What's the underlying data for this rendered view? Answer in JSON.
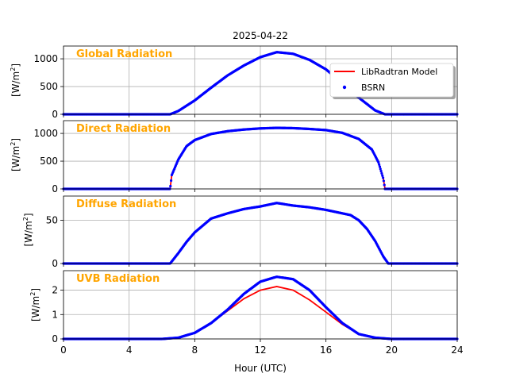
{
  "title": "2025-04-22",
  "xlabel": "Hour (UTC)",
  "x_ticks": [
    "0",
    "4",
    "8",
    "12",
    "16",
    "20",
    "24"
  ],
  "xlim": [
    0,
    24
  ],
  "legend": {
    "location": "top-right of first panel",
    "entries": [
      {
        "name": "LibRadtran Model",
        "color": "#ff0000",
        "marker": "line"
      },
      {
        "name": "BSRN",
        "color": "#0000ff",
        "marker": "point"
      }
    ]
  },
  "colors": {
    "model": "#ff0000",
    "bsrn": "#0000ff",
    "panel_label": "#ffa500",
    "grid": "#b0b0b0"
  },
  "chart_data": [
    {
      "type": "line",
      "panel_label": "Global Radiation",
      "ylabel": "[W/m2]",
      "ylim": [
        0,
        1230
      ],
      "yticks": [
        0,
        500,
        1000
      ],
      "grid": true,
      "x": [
        0,
        6.5,
        7,
        8,
        9,
        10,
        11,
        12,
        13,
        14,
        15,
        16,
        17,
        18,
        19,
        19.6,
        24
      ],
      "series": [
        {
          "name": "LibRadtran Model",
          "values": [
            0,
            0,
            60,
            250,
            480,
            700,
            880,
            1030,
            1120,
            1090,
            980,
            810,
            560,
            300,
            70,
            0,
            0
          ]
        },
        {
          "name": "BSRN",
          "values": [
            0,
            0,
            60,
            250,
            480,
            700,
            880,
            1030,
            1120,
            1090,
            980,
            810,
            560,
            300,
            70,
            0,
            0
          ]
        }
      ]
    },
    {
      "type": "line",
      "panel_label": "Direct Radiation",
      "ylabel": "[W/m2]",
      "ylim": [
        0,
        1230
      ],
      "yticks": [
        0,
        500,
        1000
      ],
      "grid": true,
      "x": [
        0,
        6.5,
        6.6,
        7,
        7.5,
        8,
        9,
        10,
        11,
        12,
        13,
        14,
        15,
        16,
        17,
        18,
        18.8,
        19.2,
        19.5,
        19.6,
        24
      ],
      "series": [
        {
          "name": "LibRadtran Model",
          "values": [
            0,
            0,
            250,
            530,
            770,
            880,
            990,
            1040,
            1070,
            1090,
            1100,
            1095,
            1080,
            1060,
            1010,
            900,
            710,
            480,
            180,
            0,
            0
          ]
        },
        {
          "name": "BSRN",
          "values": [
            0,
            0,
            250,
            530,
            770,
            880,
            990,
            1040,
            1070,
            1090,
            1100,
            1095,
            1080,
            1060,
            1010,
            900,
            710,
            480,
            180,
            0,
            0
          ]
        }
      ]
    },
    {
      "type": "line",
      "panel_label": "Diffuse Radiation",
      "ylabel": "[W/m2]",
      "ylim": [
        0,
        78
      ],
      "yticks": [
        0,
        50
      ],
      "grid": true,
      "x": [
        0,
        6.5,
        7,
        7.5,
        8,
        8.5,
        9,
        10,
        11,
        12,
        13,
        14,
        15,
        16,
        17,
        17.5,
        18,
        18.5,
        19,
        19.5,
        19.8,
        24
      ],
      "series": [
        {
          "name": "LibRadtran Model",
          "values": [
            0,
            0,
            12,
            25,
            36,
            44,
            52,
            58,
            63,
            66,
            70,
            67,
            65,
            62,
            58,
            56,
            50,
            40,
            26,
            8,
            0,
            0
          ]
        },
        {
          "name": "BSRN",
          "values": [
            0,
            0,
            12,
            25,
            36,
            44,
            52,
            58,
            63,
            66,
            70,
            67,
            65,
            62,
            58,
            56,
            50,
            40,
            26,
            8,
            0,
            0
          ]
        }
      ]
    },
    {
      "type": "line",
      "panel_label": "UVB Radiation",
      "ylabel": "[W/m2]",
      "ylim": [
        0,
        2.8
      ],
      "yticks": [
        0,
        1,
        2
      ],
      "grid": true,
      "x": [
        0,
        6,
        7,
        8,
        9,
        10,
        11,
        12,
        13,
        14,
        15,
        16,
        17,
        18,
        19,
        20,
        24
      ],
      "series": [
        {
          "name": "LibRadtran Model",
          "values": [
            0,
            0,
            0.05,
            0.25,
            0.65,
            1.15,
            1.65,
            2.0,
            2.15,
            2.0,
            1.6,
            1.1,
            0.6,
            0.2,
            0.05,
            0,
            0
          ]
        },
        {
          "name": "BSRN",
          "values": [
            0,
            0,
            0.05,
            0.25,
            0.65,
            1.2,
            1.85,
            2.35,
            2.55,
            2.45,
            2.0,
            1.3,
            0.65,
            0.2,
            0.05,
            0,
            0
          ]
        }
      ]
    }
  ]
}
